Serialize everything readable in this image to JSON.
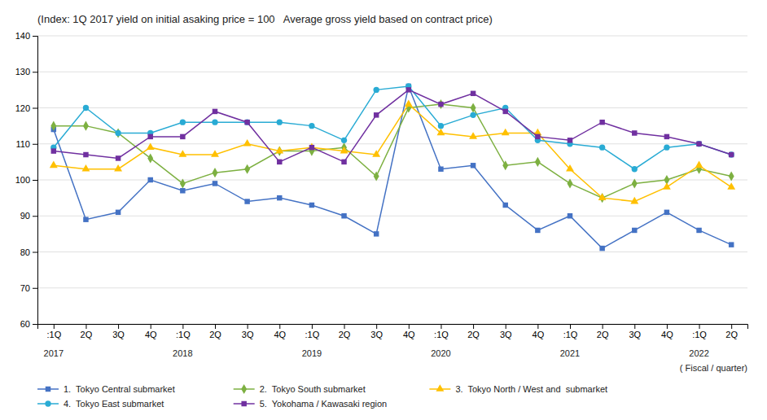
{
  "chart_data": {
    "type": "line",
    "subtitle": "(Index: 1Q 2017 yield on initial asaking price = 100   Average gross yield based on contract price)",
    "x_label": "( Fiscal / quarter)",
    "categories": [
      ":1Q",
      "2Q",
      "3Q",
      "4Q",
      ":1Q",
      "2Q",
      "3Q",
      "4Q",
      ":1Q",
      "2Q",
      "3Q",
      "4Q",
      ":1Q",
      "2Q",
      "3Q",
      "4Q",
      ":1Q",
      "2Q",
      "3Q",
      "4Q",
      ":1Q",
      "2Q"
    ],
    "annotations": [
      {
        "text": "2017",
        "x": 0
      },
      {
        "text": "2018",
        "x": 4
      },
      {
        "text": "2019",
        "x": 8
      },
      {
        "text": "2020",
        "x": 12
      },
      {
        "text": "2021",
        "x": 16
      },
      {
        "text": "2022",
        "x": 20
      }
    ],
    "ylim": [
      60,
      140
    ],
    "yticks": [
      60,
      70,
      80,
      90,
      100,
      110,
      120,
      130,
      140
    ],
    "grid": true,
    "legend": "bottom",
    "series": [
      {
        "name": "1.  Tokyo Central submarket",
        "color": "#4472C4",
        "marker": "square",
        "values": [
          114,
          89,
          91,
          100,
          97,
          99,
          94,
          95,
          93,
          90,
          85,
          126,
          103,
          104,
          93,
          86,
          90,
          81,
          86,
          91,
          86,
          82
        ]
      },
      {
        "name": "2.  Tokyo South submarket",
        "color": "#7DB041",
        "marker": "diamond",
        "values": [
          115,
          115,
          113,
          106,
          99,
          102,
          103,
          108,
          108,
          109,
          101,
          120,
          121,
          120,
          104,
          105,
          99,
          95,
          99,
          100,
          103,
          101
        ]
      },
      {
        "name": "3.  Tokyo North / West and  submarket",
        "color": "#FFC000",
        "marker": "triangle",
        "values": [
          104,
          103,
          103,
          109,
          107,
          107,
          110,
          108,
          109,
          108,
          107,
          121,
          113,
          112,
          113,
          113,
          103,
          95,
          94,
          98,
          104,
          98
        ]
      },
      {
        "name": "4.  Tokyo East submarket",
        "color": "#29ABD4",
        "marker": "circle",
        "values": [
          109,
          120,
          113,
          113,
          116,
          116,
          116,
          116,
          115,
          111,
          125,
          126,
          115,
          118,
          120,
          111,
          110,
          109,
          103,
          109,
          110,
          107
        ]
      },
      {
        "name": "5.  Yokohama / Kawasaki region",
        "color": "#7030A0",
        "marker": "square",
        "values": [
          108,
          107,
          106,
          112,
          112,
          119,
          116,
          105,
          109,
          105,
          118,
          125,
          121,
          124,
          119,
          112,
          111,
          116,
          113,
          112,
          110,
          107
        ]
      }
    ]
  }
}
